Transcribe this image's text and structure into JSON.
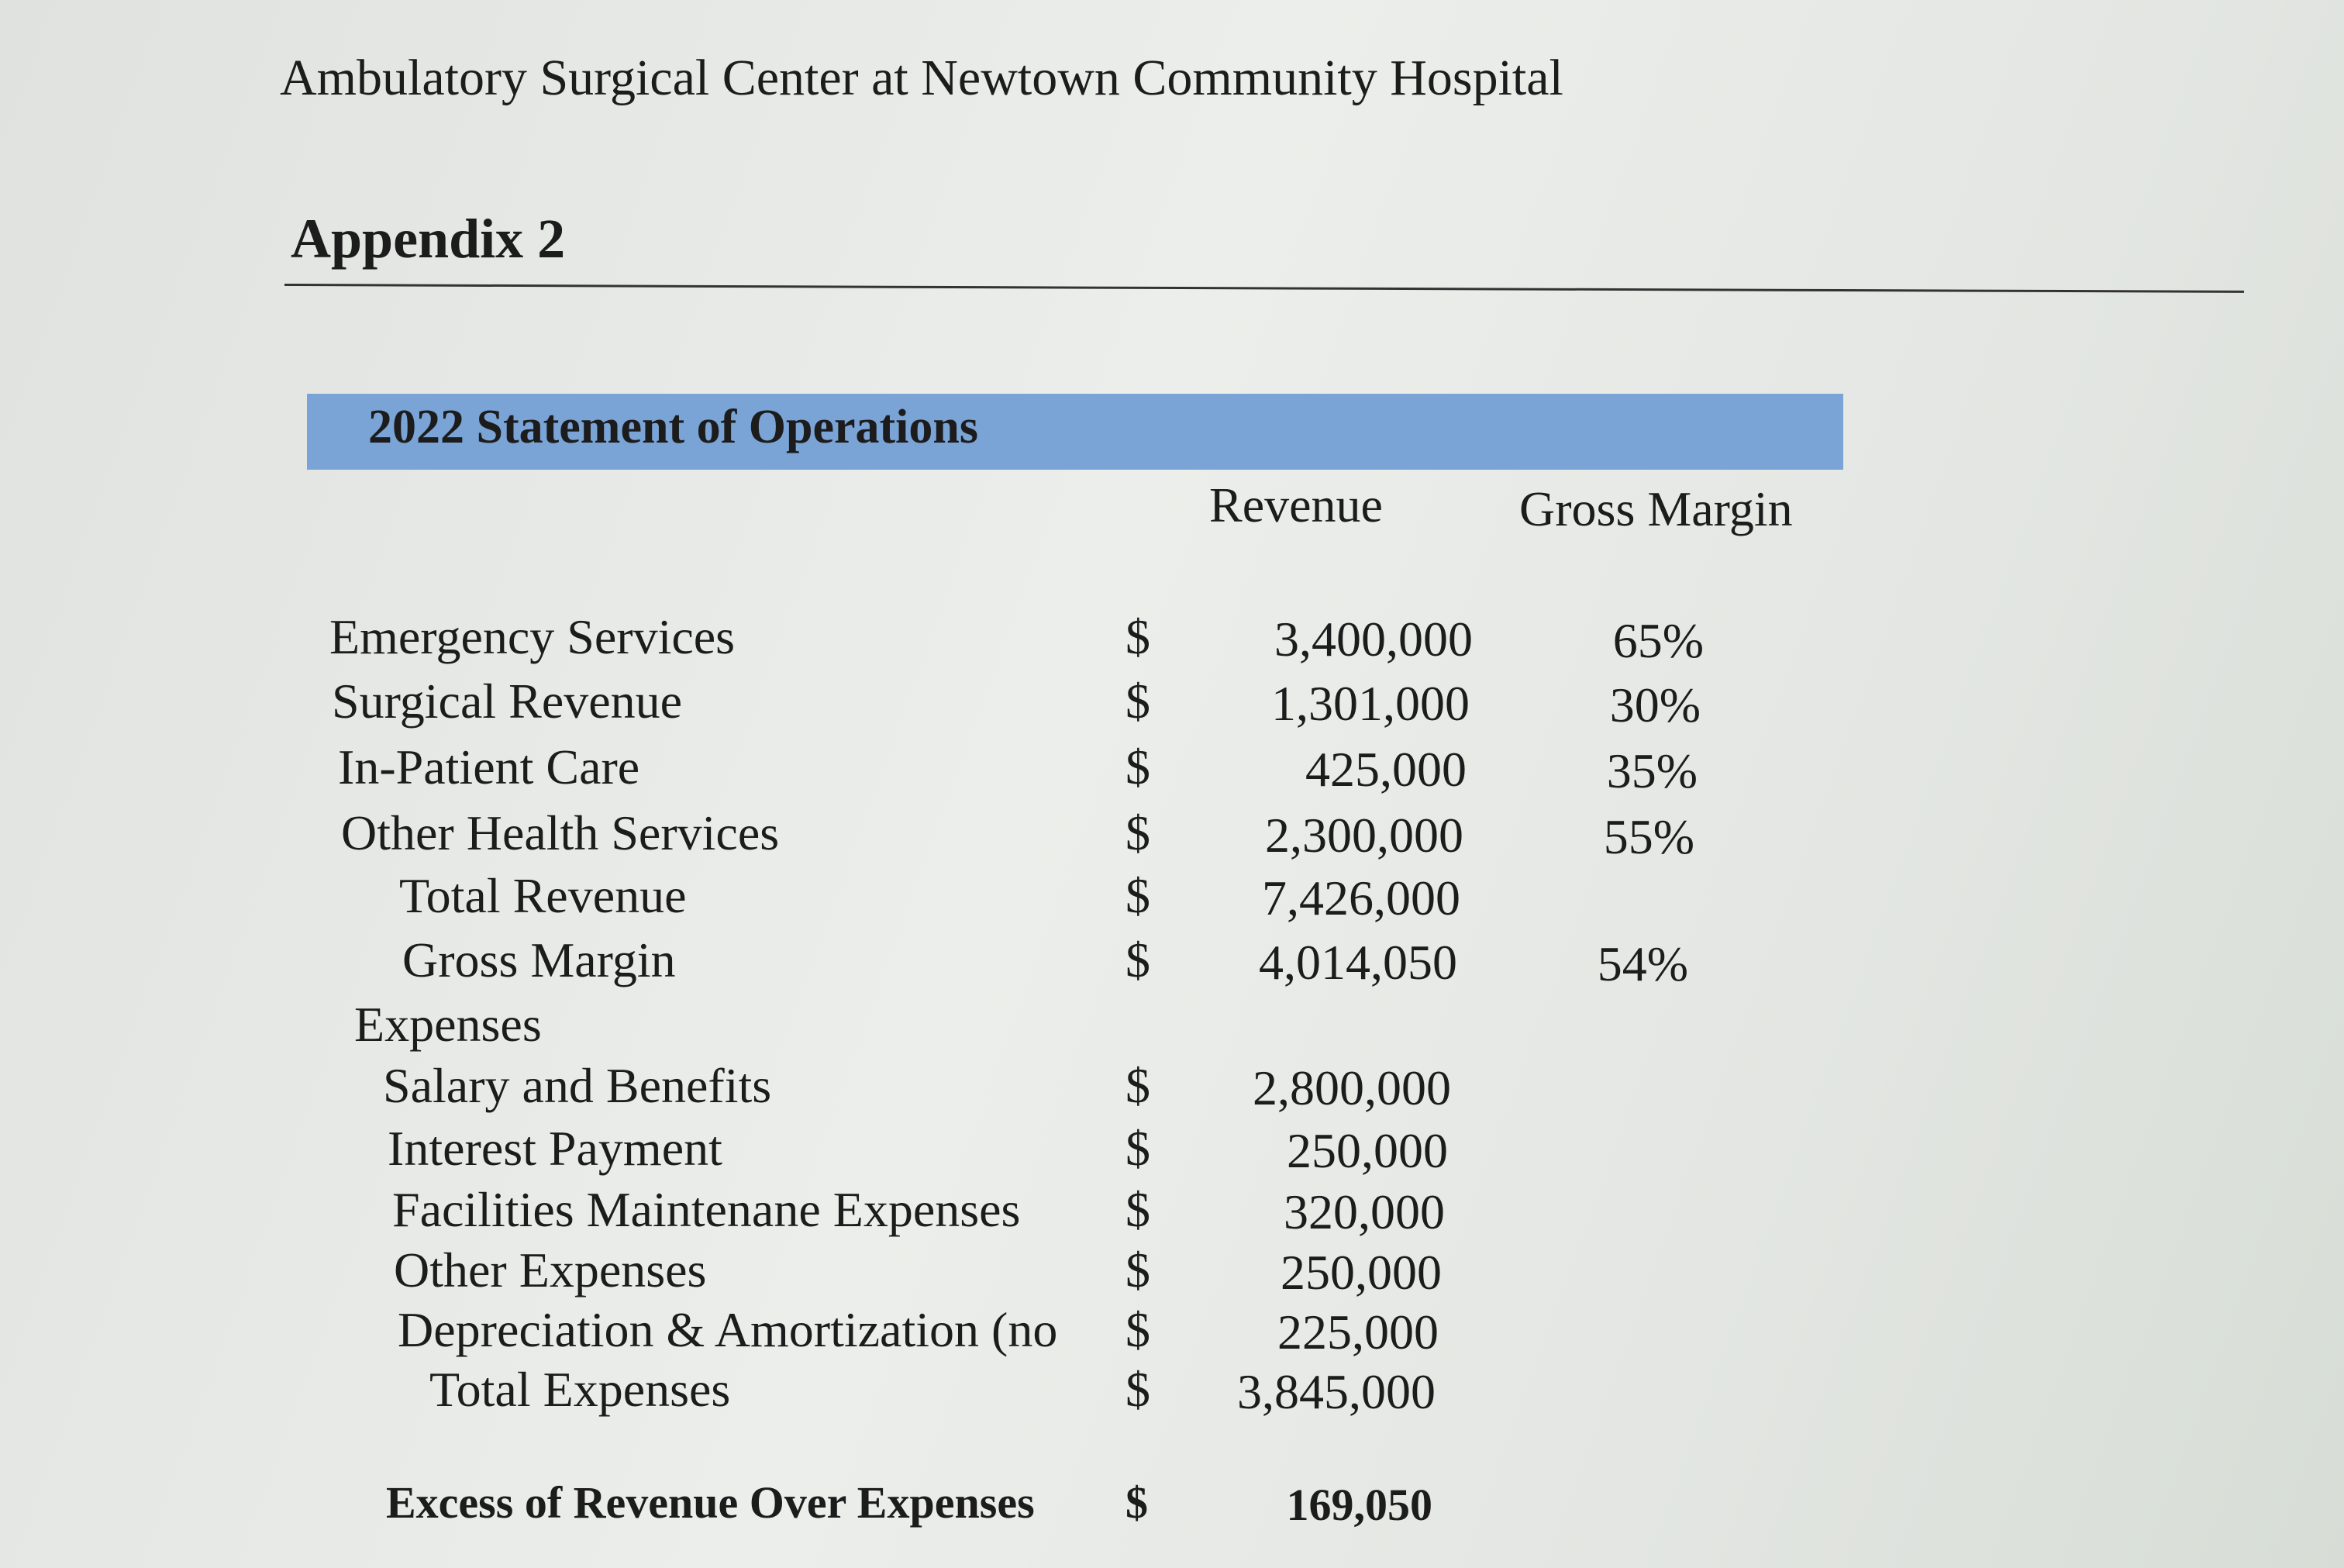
{
  "header": {
    "title": "Ambulatory Surgical Center at Newtown Community Hospital",
    "appendix": "Appendix 2"
  },
  "table": {
    "title": "2022 Statement of Operations",
    "columns": [
      "Revenue",
      "Gross Margin"
    ],
    "rows": [
      {
        "label": "Emergency Services",
        "symbol": "$",
        "revenue": "3,400,000",
        "margin": "65%"
      },
      {
        "label": "Surgical Revenue",
        "symbol": "$",
        "revenue": "1,301,000",
        "margin": "30%"
      },
      {
        "label": "In-Patient Care",
        "symbol": "$",
        "revenue": "425,000",
        "margin": "35%"
      },
      {
        "label": "Other Health Services",
        "symbol": "$",
        "revenue": "2,300,000",
        "margin": "55%"
      },
      {
        "label": "Total Revenue",
        "symbol": "$",
        "revenue": "7,426,000"
      },
      {
        "label": "Gross Margin",
        "symbol": "$",
        "revenue": "4,014,050",
        "margin": "54%"
      },
      {
        "label": "Expenses"
      },
      {
        "label": "Salary and Benefits",
        "symbol": "$",
        "revenue": "2,800,000"
      },
      {
        "label": "Interest Payment",
        "symbol": "$",
        "revenue": "250,000"
      },
      {
        "label": "Facilities Maintenane Expenses",
        "symbol": "$",
        "revenue": "320,000"
      },
      {
        "label": "Other Expenses",
        "symbol": "$",
        "revenue": "250,000"
      },
      {
        "label": "Depreciation & Amortization (no",
        "symbol": "$",
        "revenue": "225,000"
      },
      {
        "label": "Total Expenses",
        "symbol": "$",
        "revenue": "3,845,000"
      },
      {
        "label": "Excess of Revenue Over Expenses",
        "symbol": "$",
        "revenue": "169,050"
      }
    ]
  }
}
